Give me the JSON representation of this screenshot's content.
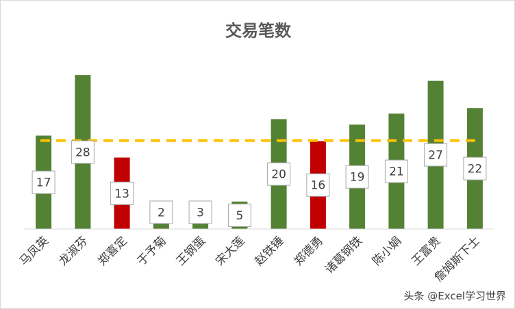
{
  "chart_data": {
    "type": "bar",
    "title": "交易笔数",
    "xlabel": "",
    "ylabel": "",
    "categories": [
      "马凤英",
      "龙淑芬",
      "郑喜定",
      "于予菊",
      "王钢蛋",
      "宋大莲",
      "赵铁锤",
      "郑德勇",
      "诸葛钢铁",
      "陈小娟",
      "王富贵",
      "詹姆斯下士"
    ],
    "values": [
      17,
      28,
      13,
      2,
      3,
      5,
      20,
      16,
      19,
      21,
      27,
      22
    ],
    "bar_colors": [
      "#548235",
      "#548235",
      "#c00000",
      "#548235",
      "#548235",
      "#548235",
      "#548235",
      "#c00000",
      "#548235",
      "#548235",
      "#548235",
      "#548235"
    ],
    "reference_line": {
      "value": 16.1,
      "color": "#ffc000",
      "style": "dashed"
    },
    "ylim": [
      0,
      31
    ],
    "grid": false,
    "legend": "none"
  },
  "watermark": "头条 @Excel学习世界"
}
